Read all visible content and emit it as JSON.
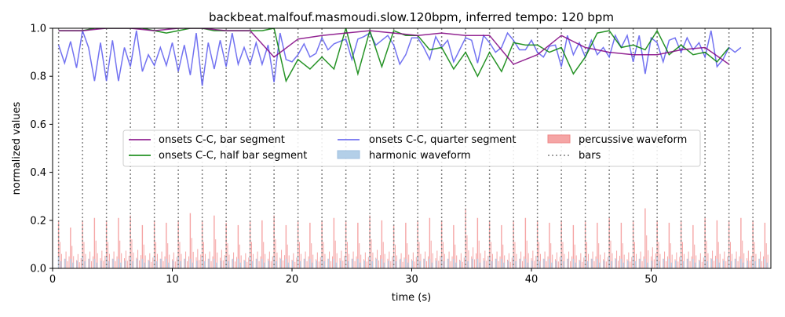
{
  "chart_data": {
    "type": "line",
    "title": "backbeat.malfouf.masmoudi.slow.120bpm, inferred tempo: 120 bpm",
    "xlabel": "time (s)",
    "ylabel": "normalized values",
    "xlim": [
      0,
      60
    ],
    "ylim": [
      0,
      1.0
    ],
    "x_ticks": [
      0,
      10,
      20,
      30,
      40,
      50
    ],
    "x_tick_labels": [
      "0",
      "10",
      "20",
      "30",
      "40",
      "50"
    ],
    "y_ticks": [
      0,
      0.2,
      0.4,
      0.6,
      0.8,
      1.0
    ],
    "y_tick_labels": [
      "0.0",
      "0.2",
      "0.4",
      "0.6",
      "0.8",
      "1.0"
    ],
    "legend_position": "center",
    "legend": [
      {
        "label": "onsets C-C, bar segment",
        "kind": "line",
        "color": "#800080"
      },
      {
        "label": "onsets C-C, half bar segment",
        "kind": "line",
        "color": "#008000"
      },
      {
        "label": "onsets C-C, quarter segment",
        "kind": "line",
        "color": "#5a5aee"
      },
      {
        "label": "harmonic waveform",
        "kind": "patch",
        "color": "#b3cfe8"
      },
      {
        "label": "percussive waveform",
        "kind": "patch",
        "color": "#f5a5a5"
      },
      {
        "label": "bars",
        "kind": "dotted",
        "color": "#808080"
      }
    ],
    "series": [
      {
        "name": "onsets C-C, bar segment",
        "color": "#800080",
        "x": [
          0.5,
          2.5,
          4.5,
          6.5,
          8.5,
          10.5,
          12.5,
          14.5,
          16.5,
          18.5,
          20.5,
          22.5,
          24.5,
          26.5,
          28.5,
          30.5,
          32.5,
          34.5,
          36.5,
          38.5,
          40.5,
          42.5,
          44.5,
          46.5,
          48.5,
          50.5,
          52.5,
          54.5,
          56.5
        ],
        "y": [
          0.99,
          0.99,
          1.0,
          1.0,
          0.99,
          1.0,
          1.0,
          0.99,
          0.99,
          0.88,
          0.955,
          0.97,
          0.98,
          0.99,
          0.98,
          0.97,
          0.98,
          0.97,
          0.97,
          0.85,
          0.89,
          0.97,
          0.92,
          0.9,
          0.89,
          0.89,
          0.91,
          0.92,
          0.85
        ]
      },
      {
        "name": "onsets C-C, half bar segment",
        "color": "#008000",
        "x": [
          0.5,
          1.5,
          2.5,
          3.5,
          4.5,
          5.5,
          6.5,
          7.5,
          8.5,
          9.5,
          10.5,
          11.5,
          12.5,
          13.5,
          14.5,
          15.5,
          16.5,
          17.5,
          18.5,
          19.5,
          20.5,
          21.5,
          22.5,
          23.5,
          24.5,
          25.5,
          26.5,
          27.5,
          28.5,
          29.5,
          30.5,
          31.5,
          32.5,
          33.5,
          34.5,
          35.5,
          36.5,
          37.5,
          38.5,
          39.5,
          40.5,
          41.5,
          42.5,
          43.5,
          44.5,
          45.5,
          46.5,
          47.5,
          48.5,
          49.5,
          50.5,
          51.5,
          52.5,
          53.5,
          54.5,
          55.5,
          56.5
        ],
        "y": [
          0.99,
          0.99,
          0.99,
          1.0,
          1.0,
          1.0,
          1.0,
          1.0,
          0.99,
          0.98,
          0.99,
          1.0,
          1.0,
          0.99,
          0.99,
          0.99,
          0.99,
          0.99,
          1.0,
          0.78,
          0.87,
          0.83,
          0.88,
          0.83,
          1.0,
          0.81,
          0.99,
          0.84,
          0.99,
          0.97,
          0.97,
          0.91,
          0.92,
          0.83,
          0.9,
          0.8,
          0.9,
          0.82,
          0.94,
          0.93,
          0.93,
          0.9,
          0.92,
          0.81,
          0.88,
          0.98,
          0.99,
          0.92,
          0.93,
          0.91,
          0.99,
          0.89,
          0.93,
          0.89,
          0.9,
          0.86,
          0.92
        ]
      },
      {
        "name": "onsets C-C, quarter segment",
        "color": "#5a5aee",
        "x": [
          0.5,
          1.0,
          1.5,
          2.0,
          2.5,
          3.0,
          3.5,
          4.0,
          4.5,
          5.0,
          5.5,
          6.0,
          6.5,
          7.0,
          7.5,
          8.0,
          8.5,
          9.0,
          9.5,
          10.0,
          10.5,
          11.0,
          11.5,
          12.0,
          12.5,
          13.0,
          13.5,
          14.0,
          14.5,
          15.0,
          15.5,
          16.0,
          16.5,
          17.0,
          17.5,
          18.0,
          18.5,
          19.0,
          19.5,
          20.0,
          20.5,
          21.0,
          21.5,
          22.0,
          22.5,
          23.0,
          23.5,
          24.0,
          24.5,
          25.0,
          25.5,
          26.0,
          26.5,
          27.0,
          27.5,
          28.0,
          28.5,
          29.0,
          29.5,
          30.0,
          30.5,
          31.0,
          31.5,
          32.0,
          32.5,
          33.0,
          33.5,
          34.0,
          34.5,
          35.0,
          35.5,
          36.0,
          36.5,
          37.0,
          37.5,
          38.0,
          38.5,
          39.0,
          39.5,
          40.0,
          40.5,
          41.0,
          41.5,
          42.0,
          42.5,
          43.0,
          43.5,
          44.0,
          44.5,
          45.0,
          45.5,
          46.0,
          46.5,
          47.0,
          47.5,
          48.0,
          48.5,
          49.0,
          49.5,
          50.0,
          50.5,
          51.0,
          51.5,
          52.0,
          52.5,
          53.0,
          53.5,
          54.0,
          54.5,
          55.0,
          55.5,
          56.0,
          56.5,
          57.0,
          57.5
        ],
        "y": [
          0.93,
          0.855,
          0.945,
          0.835,
          0.99,
          0.92,
          0.78,
          0.94,
          0.78,
          0.95,
          0.78,
          0.92,
          0.84,
          0.99,
          0.82,
          0.89,
          0.845,
          0.92,
          0.845,
          0.94,
          0.82,
          0.93,
          0.805,
          0.98,
          0.76,
          0.94,
          0.83,
          0.95,
          0.84,
          0.98,
          0.85,
          0.92,
          0.85,
          0.94,
          0.85,
          0.93,
          0.775,
          0.98,
          0.87,
          0.86,
          0.89,
          0.935,
          0.88,
          0.895,
          0.96,
          0.91,
          0.935,
          0.945,
          0.955,
          0.87,
          0.955,
          0.965,
          0.98,
          0.93,
          0.95,
          0.97,
          0.93,
          0.85,
          0.89,
          0.96,
          0.96,
          0.92,
          0.87,
          0.965,
          0.92,
          0.95,
          0.86,
          0.91,
          0.96,
          0.95,
          0.855,
          0.97,
          0.94,
          0.9,
          0.92,
          0.98,
          0.95,
          0.91,
          0.91,
          0.95,
          0.9,
          0.88,
          0.925,
          0.93,
          0.84,
          0.97,
          0.89,
          0.94,
          0.88,
          0.95,
          0.89,
          0.92,
          0.88,
          0.97,
          0.92,
          0.97,
          0.86,
          0.97,
          0.81,
          0.96,
          0.94,
          0.86,
          0.95,
          0.96,
          0.9,
          0.96,
          0.91,
          0.94,
          0.88,
          0.99,
          0.84,
          0.87,
          0.92,
          0.9,
          0.92
        ]
      }
    ],
    "bars_x": [
      0.5,
      2.5,
      4.5,
      6.5,
      8.5,
      10.5,
      12.5,
      14.5,
      16.5,
      18.5,
      20.5,
      22.5,
      24.5,
      26.5,
      28.5,
      30.5,
      32.5,
      34.5,
      36.5,
      38.5,
      40.5,
      42.5,
      44.5,
      46.5,
      48.5,
      50.5,
      52.5,
      54.5,
      56.5,
      58.5
    ],
    "percussive_waveform": {
      "color": "#f5a5a5",
      "hit_times": [
        0.5,
        1.5,
        2.5,
        3.5,
        4.5,
        5.5,
        6.5,
        7.5,
        8.5,
        9.5,
        10.5,
        11.5,
        12.5,
        13.5,
        14.5,
        15.5,
        16.5,
        17.5,
        18.5,
        19.5,
        20.5,
        21.5,
        22.5,
        23.5,
        24.5,
        25.5,
        26.5,
        27.5,
        28.5,
        29.5,
        30.5,
        31.5,
        32.5,
        33.5,
        34.5,
        35.5,
        36.5,
        37.5,
        38.5,
        39.5,
        40.5,
        41.5,
        42.5,
        43.5,
        44.5,
        45.5,
        46.5,
        47.5,
        48.5,
        49.5,
        50.5,
        51.5,
        52.5,
        53.5,
        54.5,
        55.5,
        56.5,
        57.5,
        58.5,
        59.5
      ],
      "hit_peaks": [
        0.2,
        0.17,
        0.2,
        0.21,
        0.2,
        0.21,
        0.22,
        0.18,
        0.2,
        0.19,
        0.2,
        0.23,
        0.2,
        0.22,
        0.19,
        0.18,
        0.2,
        0.2,
        0.22,
        0.18,
        0.2,
        0.19,
        0.2,
        0.21,
        0.2,
        0.19,
        0.22,
        0.2,
        0.18,
        0.19,
        0.2,
        0.21,
        0.2,
        0.18,
        0.25,
        0.21,
        0.2,
        0.18,
        0.2,
        0.21,
        0.2,
        0.19,
        0.2,
        0.18,
        0.2,
        0.19,
        0.21,
        0.19,
        0.2,
        0.25,
        0.2,
        0.19,
        0.2,
        0.18,
        0.21,
        0.2,
        0.2,
        0.21,
        0.2,
        0.19
      ]
    },
    "harmonic_waveform": {
      "color": "#b3cfe8",
      "hit_times": [
        0.5,
        1.5,
        2.5,
        3.5,
        4.5,
        5.5,
        6.5,
        7.5,
        8.5,
        9.5,
        10.5,
        11.5,
        12.5,
        13.5,
        14.5,
        15.5,
        16.5,
        17.5,
        18.5,
        19.5,
        20.5,
        21.5,
        22.5,
        23.5,
        24.5,
        25.5,
        26.5,
        27.5,
        28.5,
        29.5,
        30.5,
        31.5,
        32.5,
        33.5,
        34.5,
        35.5,
        36.5,
        37.5,
        38.5,
        39.5,
        40.5,
        41.5,
        42.5,
        43.5,
        44.5,
        45.5,
        46.5,
        47.5,
        48.5,
        49.5,
        50.5,
        51.5,
        52.5,
        53.5,
        54.5,
        55.5,
        56.5,
        57.5,
        58.5,
        59.5
      ],
      "hit_peaks": [
        0.05,
        0.04,
        0.05,
        0.04,
        0.05,
        0.04,
        0.05,
        0.04,
        0.05,
        0.04,
        0.05,
        0.04,
        0.05,
        0.04,
        0.05,
        0.04,
        0.05,
        0.04,
        0.05,
        0.04,
        0.05,
        0.04,
        0.05,
        0.04,
        0.05,
        0.04,
        0.05,
        0.04,
        0.05,
        0.04,
        0.05,
        0.04,
        0.05,
        0.04,
        0.05,
        0.04,
        0.05,
        0.04,
        0.05,
        0.04,
        0.05,
        0.04,
        0.05,
        0.04,
        0.05,
        0.04,
        0.05,
        0.04,
        0.05,
        0.04,
        0.05,
        0.04,
        0.05,
        0.04,
        0.05,
        0.04,
        0.05,
        0.04,
        0.05,
        0.04
      ]
    },
    "grid": false
  }
}
